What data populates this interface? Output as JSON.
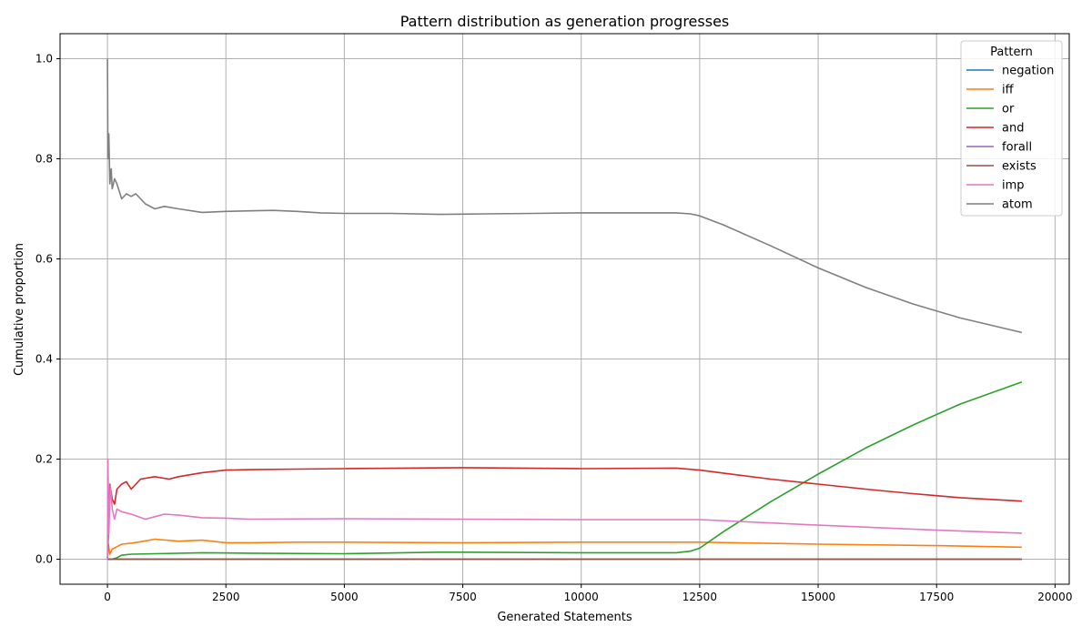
{
  "chart_data": {
    "type": "line",
    "title": "Pattern distribution as generation progresses",
    "xlabel": "Generated Statements",
    "ylabel": "Cumulative proportion",
    "xlim": [
      -1000,
      20300
    ],
    "ylim": [
      -0.05,
      1.05
    ],
    "xticks": [
      0,
      2500,
      5000,
      7500,
      10000,
      12500,
      15000,
      17500,
      20000
    ],
    "yticks": [
      0.0,
      0.2,
      0.4,
      0.6,
      0.8,
      1.0
    ],
    "grid": true,
    "legend": {
      "title": "Pattern",
      "position": "top-right"
    },
    "series": [
      {
        "name": "negation",
        "color": "#1f77b4",
        "x": [
          0,
          19300
        ],
        "y": [
          0.0,
          0.0
        ]
      },
      {
        "name": "iff",
        "color": "#ff7f0e",
        "x": [
          0,
          20,
          50,
          100,
          200,
          300,
          500,
          700,
          1000,
          1500,
          2000,
          2500,
          3000,
          4000,
          5000,
          7500,
          10000,
          12500,
          15000,
          17500,
          19300
        ],
        "y": [
          0.0,
          0.03,
          0.01,
          0.02,
          0.025,
          0.03,
          0.032,
          0.035,
          0.04,
          0.036,
          0.038,
          0.033,
          0.033,
          0.034,
          0.034,
          0.033,
          0.034,
          0.034,
          0.03,
          0.027,
          0.024
        ]
      },
      {
        "name": "or",
        "color": "#2ca02c",
        "x": [
          0,
          100,
          200,
          300,
          500,
          1000,
          2000,
          3000,
          5000,
          7000,
          7500,
          10000,
          12000,
          12300,
          12500,
          13000,
          14000,
          15000,
          16000,
          17000,
          18000,
          19300
        ],
        "y": [
          0.0,
          0.0,
          0.003,
          0.008,
          0.01,
          0.011,
          0.013,
          0.012,
          0.011,
          0.014,
          0.014,
          0.013,
          0.013,
          0.016,
          0.022,
          0.055,
          0.115,
          0.17,
          0.222,
          0.268,
          0.31,
          0.354
        ]
      },
      {
        "name": "and",
        "color": "#d62728",
        "x": [
          0,
          50,
          100,
          150,
          200,
          300,
          400,
          500,
          700,
          1000,
          1300,
          1500,
          2000,
          2500,
          3000,
          4000,
          5000,
          7500,
          10000,
          12000,
          12500,
          13000,
          14000,
          15000,
          16000,
          17000,
          18000,
          19300
        ],
        "y": [
          0.0,
          0.15,
          0.12,
          0.11,
          0.14,
          0.15,
          0.155,
          0.14,
          0.16,
          0.165,
          0.16,
          0.165,
          0.173,
          0.178,
          0.179,
          0.18,
          0.181,
          0.183,
          0.181,
          0.182,
          0.178,
          0.172,
          0.16,
          0.15,
          0.14,
          0.131,
          0.123,
          0.116
        ]
      },
      {
        "name": "forall",
        "color": "#9467bd",
        "x": [
          0,
          19300
        ],
        "y": [
          0.0,
          0.0
        ]
      },
      {
        "name": "exists",
        "color": "#8c564b",
        "x": [
          0,
          19300
        ],
        "y": [
          0.0,
          0.0
        ]
      },
      {
        "name": "imp",
        "color": "#e377c2",
        "x": [
          0,
          10,
          30,
          60,
          100,
          150,
          200,
          300,
          500,
          800,
          1000,
          1200,
          1500,
          2000,
          2500,
          3000,
          5000,
          7500,
          10000,
          12500,
          15000,
          17500,
          19300
        ],
        "y": [
          0.0,
          0.2,
          0.05,
          0.15,
          0.1,
          0.08,
          0.1,
          0.095,
          0.09,
          0.08,
          0.085,
          0.09,
          0.088,
          0.083,
          0.082,
          0.08,
          0.081,
          0.08,
          0.079,
          0.079,
          0.068,
          0.058,
          0.052
        ]
      },
      {
        "name": "atom",
        "color": "#7f7f7f",
        "x": [
          0,
          10,
          30,
          50,
          80,
          100,
          150,
          200,
          300,
          400,
          500,
          600,
          800,
          1000,
          1200,
          1500,
          2000,
          2500,
          3000,
          3500,
          4000,
          4500,
          5000,
          6000,
          7000,
          8000,
          9000,
          10000,
          11000,
          12000,
          12300,
          12500,
          13000,
          14000,
          15000,
          16000,
          17000,
          18000,
          19300
        ],
        "y": [
          1.0,
          0.8,
          0.85,
          0.75,
          0.78,
          0.74,
          0.76,
          0.75,
          0.72,
          0.73,
          0.725,
          0.73,
          0.71,
          0.7,
          0.705,
          0.7,
          0.693,
          0.695,
          0.696,
          0.697,
          0.695,
          0.692,
          0.691,
          0.691,
          0.689,
          0.69,
          0.691,
          0.692,
          0.692,
          0.692,
          0.69,
          0.686,
          0.668,
          0.626,
          0.582,
          0.543,
          0.51,
          0.482,
          0.453
        ]
      }
    ]
  }
}
